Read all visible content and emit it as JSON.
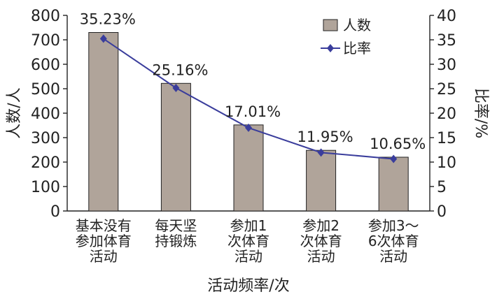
{
  "chart_data": {
    "type": "bar",
    "categories": [
      [
        "基本没有",
        "参加体育",
        "活动"
      ],
      [
        "每天坚",
        "持锻炼"
      ],
      [
        "参加1",
        "次体育",
        "活动"
      ],
      [
        "参加2",
        "次体育",
        "活动"
      ],
      [
        "参加3～",
        "6次体育",
        "活动"
      ]
    ],
    "series": [
      {
        "name": "人数",
        "type": "bar",
        "axis": "left",
        "values": [
          730,
          522,
          352,
          248,
          220
        ],
        "color": "#b0a49a"
      },
      {
        "name": "比率",
        "type": "line",
        "axis": "right",
        "values": [
          35.23,
          25.16,
          17.01,
          11.95,
          10.65
        ],
        "color": "#3a3d9c"
      }
    ],
    "data_labels": [
      "35.23%",
      "25.16%",
      "17.01%",
      "11.95%",
      "10.65%"
    ],
    "xlabel": "活动频率/次",
    "ylabel": "人数/人",
    "y2label": "比率/%",
    "ylim": [
      0,
      800
    ],
    "y2lim": [
      0,
      40
    ],
    "yticks": [
      "0",
      "100",
      "200",
      "300",
      "400",
      "500",
      "600",
      "700",
      "800"
    ],
    "y2ticks": [
      "0",
      "5",
      "10",
      "15",
      "20",
      "25",
      "30",
      "35",
      "40"
    ],
    "legend": {
      "position": "top-right",
      "entries": [
        "人数",
        "比率"
      ]
    },
    "grid": false
  }
}
